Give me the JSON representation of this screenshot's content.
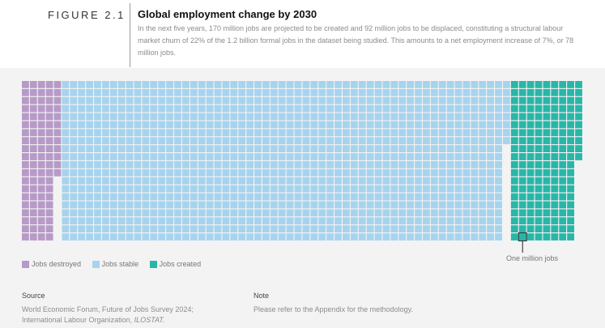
{
  "figure": {
    "label": "FIGURE 2.1",
    "title": "Global employment change by 2030",
    "subtitle": "In the next five years, 170 million jobs are projected to be created and 92 million jobs to be displaced, constituting a structural labour market churn of 22% of the 1.2 billion formal jobs in the dataset being studied. This amounts to a net employment increase of 7%, or 78 million jobs."
  },
  "chart_data": {
    "type": "waffle",
    "unit_label": "One million jobs",
    "series": [
      {
        "name": "Jobs destroyed",
        "value": 92,
        "color": "#b79ac8"
      },
      {
        "name": "Jobs stable",
        "value": 1108,
        "color": "#a7d3ee"
      },
      {
        "name": "Jobs created",
        "value": 170,
        "color": "#29b6a8"
      }
    ],
    "legend_position": "bottom-left"
  },
  "footer": {
    "source_heading": "Source",
    "source_line1": "World Economic Forum, Future of Jobs Survey 2024;",
    "source_line2": "International Labour Organization,",
    "source_line2_italic": "ILOSTAT.",
    "note_heading": "Note",
    "note_text": "Please refer to the Appendix for the methodology."
  }
}
